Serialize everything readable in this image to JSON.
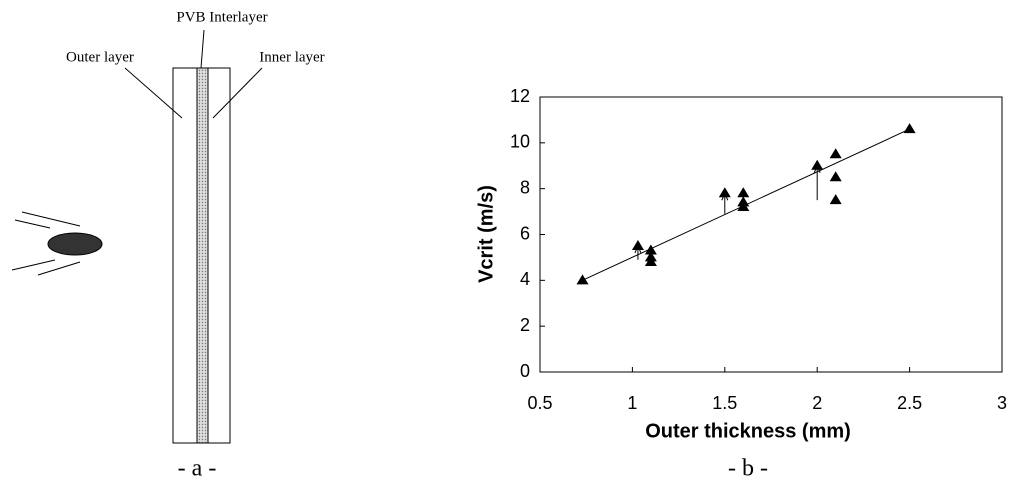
{
  "diagram": {
    "labels": {
      "pvb": "PVB Interlayer",
      "outer": "Outer layer",
      "inner": "Inner layer"
    },
    "caption": "- a -"
  },
  "chart_data": {
    "type": "scatter",
    "caption": "- b -",
    "x_label": "Outer thickness (mm)",
    "y_label": "Vcrit (m/s)",
    "x": [
      0.73,
      1.03,
      1.1,
      1.1,
      1.1,
      1.5,
      1.6,
      1.6,
      1.6,
      2.0,
      2.1,
      2.1,
      2.1,
      2.5
    ],
    "values": [
      4.0,
      5.5,
      5.3,
      5.0,
      4.8,
      7.8,
      7.8,
      7.4,
      7.2,
      9.0,
      9.5,
      8.5,
      7.5,
      10.6
    ],
    "color": "#000000",
    "arrows": [
      {
        "x": 1.03,
        "from": 4.9,
        "to": 5.5
      },
      {
        "x": 1.5,
        "from": 6.9,
        "to": 7.8
      },
      {
        "x": 2.0,
        "from": 7.5,
        "to": 9.0
      }
    ],
    "trend": {
      "x": [
        0.73,
        2.5
      ],
      "y": [
        4.0,
        10.6
      ]
    },
    "xlim": [
      0.5,
      3
    ],
    "xticks": [
      0.5,
      1,
      1.5,
      2,
      2.5,
      3
    ],
    "ylim": [
      0,
      12
    ],
    "yticks": [
      0,
      2,
      4,
      6,
      8,
      10,
      12
    ]
  }
}
